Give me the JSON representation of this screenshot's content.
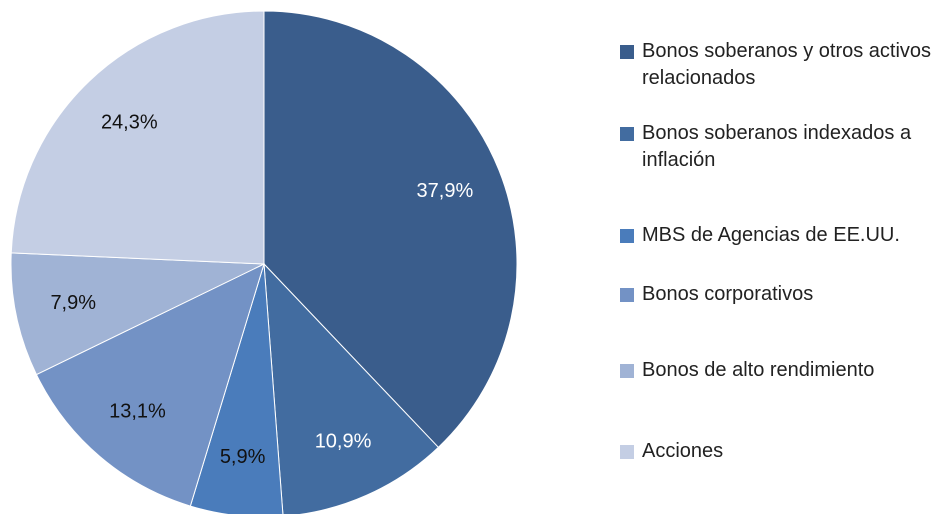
{
  "chart_data": {
    "type": "pie",
    "series": [
      {
        "name": "Bonos soberanos y otros activos  relacionados",
        "color": "#3a5d8c"
      },
      {
        "name": "Bonos soberanos indexados a inflación",
        "color": "#426ca0"
      },
      {
        "name": "MBS de Agencias de EE.UU.",
        "color": "#4a7cbb"
      },
      {
        "name": "Bonos corporativos",
        "color": "#7392c5"
      },
      {
        "name": "Bonos de alto rendimiento",
        "color": "#a0b3d5"
      },
      {
        "name": "Acciones",
        "color": "#c4cee4"
      }
    ],
    "values": [
      37.9,
      10.9,
      5.9,
      13.1,
      7.9,
      24.3
    ],
    "value_labels": [
      "37,9%",
      "10,9%",
      "5,9%",
      "13,1%",
      "7,9%",
      "24,3%"
    ],
    "legend": "right"
  }
}
